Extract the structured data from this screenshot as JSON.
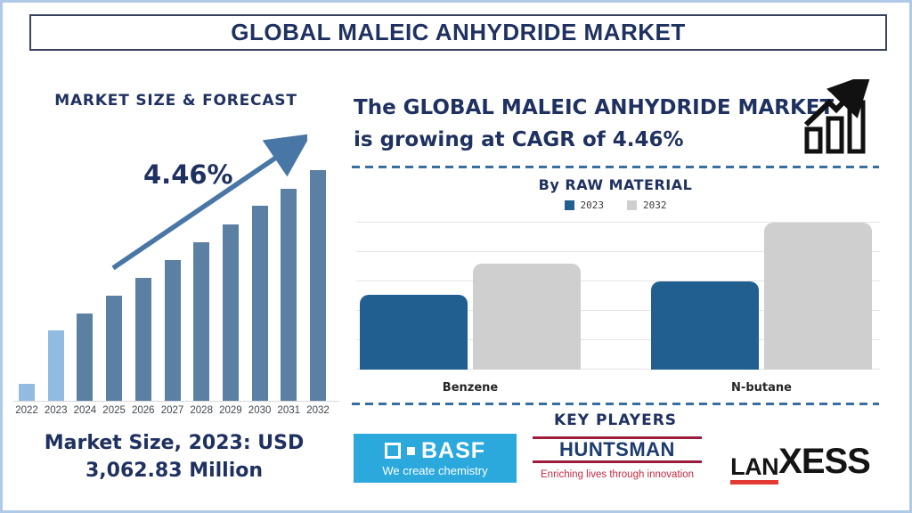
{
  "page": {
    "title": "GLOBAL MALEIC ANHYDRIDE MARKET"
  },
  "left_panel": {
    "caption_line1": "Market Size, 2023: USD",
    "caption_line2": "3,062.83 Million"
  },
  "right_panel": {
    "growth_line1": "The GLOBAL MALEIC ANHYDRIDE MARKET",
    "growth_line2": "is growing at CAGR of 4.46%",
    "key_players_heading": "KEY PLAYERS"
  },
  "icons": {
    "trend_arrow": "diagonal-up-arrow",
    "growth_chart": "rising-bar-chart-with-arrow"
  },
  "colors": {
    "navy_text": "#1F3160",
    "page_border": "#AFC9E6",
    "divider_blue": "#3A6E9F",
    "arrow_blue": "#4877A6"
  },
  "key_players": {
    "basf": {
      "name": "BASF",
      "tagline": "We create chemistry",
      "bg_color": "#2BA9DD",
      "text_color": "#FFFFFF"
    },
    "huntsman": {
      "name": "HUNTSMAN",
      "tagline": "Enriching lives through innovation",
      "text_color": "#1D3D6E",
      "accent_color": "#9D1C3C",
      "tagline_color": "#C62A44"
    },
    "lanxess": {
      "name_part1": "LAN",
      "name_part2": "XESS",
      "text_color": "#141414",
      "accent_color": "#E23B34"
    }
  },
  "chart_data": [
    {
      "type": "bar",
      "title": "MARKET SIZE & FORECAST",
      "categories": [
        "2022",
        "2023",
        "2024",
        "2025",
        "2026",
        "2027",
        "2028",
        "2029",
        "2030",
        "2031",
        "2032"
      ],
      "values": [
        7.5,
        30.5,
        38,
        45.7,
        53.3,
        61.1,
        68.6,
        76.6,
        84.4,
        92,
        100
      ],
      "units": "relative bar height, % of tallest bar (no numeric axis shown)",
      "annotation": "4.46%",
      "known_value": "Market Size, 2023: USD 3,062.83 Million",
      "highlight_categories": [
        "2022",
        "2023"
      ],
      "colors": {
        "default": "#5C80A3",
        "highlight": "#92BBE2"
      },
      "xlabel": "",
      "ylabel": "",
      "grid": false,
      "legend_position": "none"
    },
    {
      "type": "bar",
      "title": "By RAW MATERIAL",
      "categories": [
        "Benzene",
        "N-butane"
      ],
      "series": [
        {
          "name": "2023",
          "values": [
            51,
            60
          ],
          "color": "#215F90"
        },
        {
          "name": "2032",
          "values": [
            72,
            100
          ],
          "color": "#CFCFCF"
        }
      ],
      "units": "relative bar height, % of tallest bar (no numeric axis shown)",
      "xlabel": "",
      "ylabel": "",
      "grid": true,
      "legend_position": "top"
    }
  ]
}
